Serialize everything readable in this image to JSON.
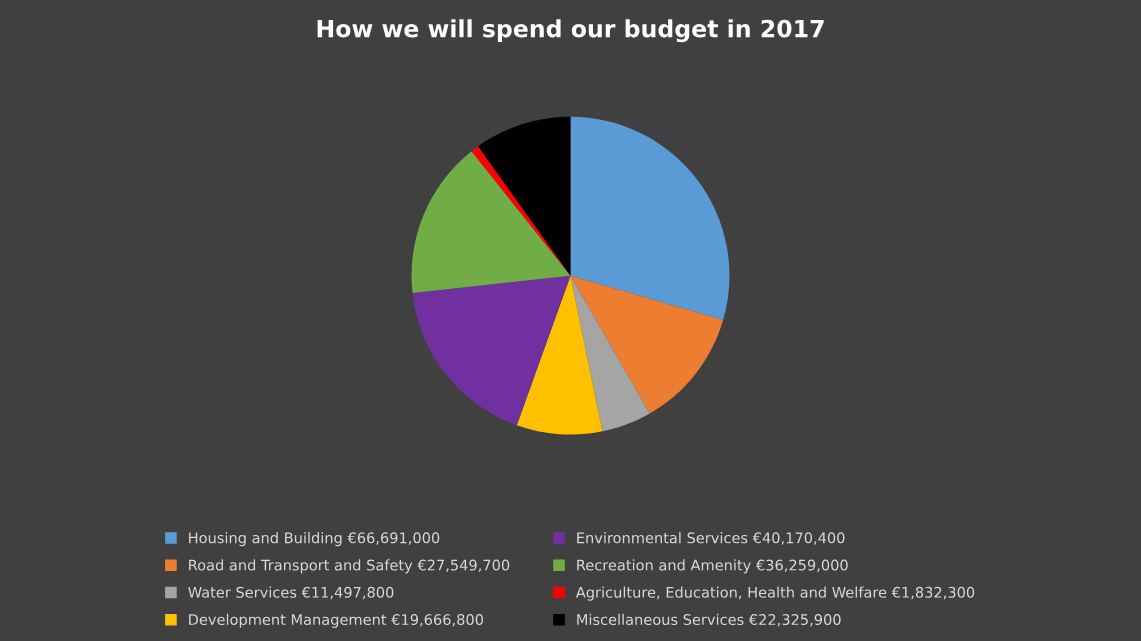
{
  "chart_data": {
    "type": "pie",
    "title": "How we will spend our budget in 2017",
    "categories": [
      "Housing and Building",
      "Road and Transport and Safety",
      "Water Services",
      "Development Management",
      "Environmental Services",
      "Recreation and Amenity",
      "Agriculture, Education, Health and Welfare",
      "Miscellaneous Services"
    ],
    "values": [
      66691000,
      27549700,
      11497800,
      19666800,
      40170400,
      36259000,
      1832300,
      22325900
    ],
    "value_labels": [
      "€66,691,000",
      "€27,549,700",
      "€11,497,800",
      "€19,666,800",
      "€40,170,400",
      "€36,259,000",
      "€1,832,300",
      "€22,325,900"
    ],
    "colors": [
      "#5b9bd5",
      "#ed7d31",
      "#a5a5a5",
      "#ffc000",
      "#7030a0",
      "#70ad47",
      "#ff0000",
      "#000000"
    ],
    "legend": "bottom"
  }
}
